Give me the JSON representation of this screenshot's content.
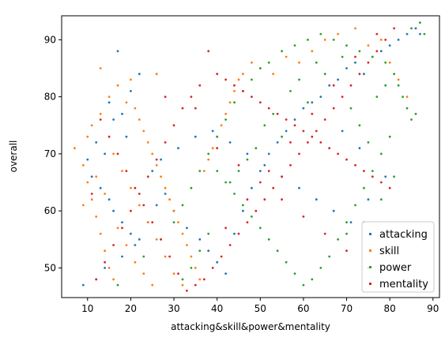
{
  "chart_data": {
    "type": "scatter",
    "xlabel": "attacking&skill&power&mentality",
    "ylabel": "overall",
    "xlim": [
      4,
      91.5
    ],
    "ylim": [
      44.8,
      94.2
    ],
    "xticks": [
      10,
      20,
      30,
      40,
      50,
      60,
      70,
      80,
      90
    ],
    "yticks": [
      50,
      60,
      70,
      80,
      90
    ],
    "legend_position": "lower-right",
    "grid": false,
    "series": [
      {
        "name": "attacking",
        "color": "#1f77b4",
        "points": [
          [
            17,
            88
          ],
          [
            22,
            84
          ],
          [
            20,
            81
          ],
          [
            15,
            79
          ],
          [
            16,
            76
          ],
          [
            18,
            77
          ],
          [
            12,
            72
          ],
          [
            14,
            70
          ],
          [
            19,
            73
          ],
          [
            10,
            69
          ],
          [
            11,
            66
          ],
          [
            13,
            64
          ],
          [
            15,
            62
          ],
          [
            16,
            60
          ],
          [
            18,
            58
          ],
          [
            20,
            56
          ],
          [
            22,
            55
          ],
          [
            24,
            58
          ],
          [
            26,
            61
          ],
          [
            28,
            63
          ],
          [
            30,
            60
          ],
          [
            33,
            57
          ],
          [
            36,
            55
          ],
          [
            38,
            53
          ],
          [
            40,
            51
          ],
          [
            42,
            49
          ],
          [
            44,
            56
          ],
          [
            46,
            60
          ],
          [
            48,
            64
          ],
          [
            50,
            67
          ],
          [
            52,
            70
          ],
          [
            54,
            72
          ],
          [
            56,
            74
          ],
          [
            58,
            76
          ],
          [
            60,
            78
          ],
          [
            62,
            79
          ],
          [
            64,
            80
          ],
          [
            66,
            82
          ],
          [
            68,
            83
          ],
          [
            70,
            85
          ],
          [
            72,
            86
          ],
          [
            74,
            84
          ],
          [
            76,
            87
          ],
          [
            78,
            88
          ],
          [
            80,
            89
          ],
          [
            82,
            90
          ],
          [
            84,
            91
          ],
          [
            86,
            92
          ],
          [
            87,
            91
          ],
          [
            9,
            47
          ],
          [
            12,
            48
          ],
          [
            14,
            50
          ],
          [
            18,
            52
          ],
          [
            21,
            54
          ],
          [
            25,
            67
          ],
          [
            27,
            69
          ],
          [
            31,
            71
          ],
          [
            35,
            73
          ],
          [
            39,
            74
          ],
          [
            43,
            72
          ],
          [
            47,
            70
          ],
          [
            51,
            68
          ],
          [
            55,
            66
          ],
          [
            59,
            64
          ],
          [
            63,
            62
          ],
          [
            67,
            60
          ],
          [
            71,
            58
          ],
          [
            75,
            62
          ],
          [
            79,
            66
          ],
          [
            73,
            71
          ],
          [
            69,
            74
          ]
        ]
      },
      {
        "name": "skill",
        "color": "#ff7f0e",
        "points": [
          [
            7,
            71
          ],
          [
            9,
            68
          ],
          [
            10,
            65
          ],
          [
            11,
            62
          ],
          [
            12,
            59
          ],
          [
            13,
            56
          ],
          [
            14,
            53
          ],
          [
            15,
            50
          ],
          [
            16,
            48
          ],
          [
            10,
            73
          ],
          [
            11,
            75
          ],
          [
            13,
            77
          ],
          [
            15,
            80
          ],
          [
            17,
            82
          ],
          [
            19,
            79
          ],
          [
            20,
            83
          ],
          [
            21,
            78
          ],
          [
            22,
            76
          ],
          [
            23,
            74
          ],
          [
            24,
            72
          ],
          [
            25,
            70
          ],
          [
            26,
            68
          ],
          [
            27,
            66
          ],
          [
            28,
            64
          ],
          [
            29,
            62
          ],
          [
            30,
            60
          ],
          [
            31,
            58
          ],
          [
            32,
            56
          ],
          [
            33,
            54
          ],
          [
            34,
            52
          ],
          [
            35,
            50
          ],
          [
            36,
            48
          ],
          [
            37,
            67
          ],
          [
            38,
            69
          ],
          [
            39,
            71
          ],
          [
            40,
            73
          ],
          [
            41,
            75
          ],
          [
            42,
            77
          ],
          [
            43,
            79
          ],
          [
            44,
            81
          ],
          [
            45,
            83
          ],
          [
            46,
            84
          ],
          [
            48,
            86
          ],
          [
            50,
            85
          ],
          [
            53,
            84
          ],
          [
            56,
            87
          ],
          [
            59,
            86
          ],
          [
            62,
            88
          ],
          [
            65,
            90
          ],
          [
            68,
            91
          ],
          [
            72,
            92
          ],
          [
            75,
            89
          ],
          [
            78,
            90
          ],
          [
            80,
            86
          ],
          [
            82,
            83
          ],
          [
            84,
            80
          ],
          [
            13,
            85
          ],
          [
            26,
            84
          ],
          [
            9,
            61
          ],
          [
            12,
            66
          ],
          [
            14,
            63
          ],
          [
            16,
            70
          ],
          [
            18,
            67
          ],
          [
            20,
            64
          ],
          [
            22,
            61
          ],
          [
            24,
            58
          ],
          [
            26,
            55
          ],
          [
            28,
            52
          ],
          [
            30,
            49
          ],
          [
            32,
            47
          ],
          [
            17,
            57
          ],
          [
            19,
            54
          ],
          [
            21,
            51
          ],
          [
            23,
            49
          ],
          [
            25,
            47
          ]
        ]
      },
      {
        "name": "power",
        "color": "#2ca02c",
        "points": [
          [
            17,
            47
          ],
          [
            23,
            52
          ],
          [
            27,
            55
          ],
          [
            30,
            58
          ],
          [
            32,
            61
          ],
          [
            34,
            64
          ],
          [
            36,
            67
          ],
          [
            38,
            70
          ],
          [
            40,
            73
          ],
          [
            42,
            76
          ],
          [
            44,
            79
          ],
          [
            46,
            81
          ],
          [
            48,
            83
          ],
          [
            50,
            85
          ],
          [
            52,
            86
          ],
          [
            55,
            88
          ],
          [
            58,
            89
          ],
          [
            61,
            90
          ],
          [
            64,
            91
          ],
          [
            67,
            90
          ],
          [
            70,
            89
          ],
          [
            73,
            88
          ],
          [
            76,
            87
          ],
          [
            79,
            86
          ],
          [
            81,
            84
          ],
          [
            82,
            82
          ],
          [
            83,
            80
          ],
          [
            84,
            78
          ],
          [
            85,
            76
          ],
          [
            86,
            77
          ],
          [
            80,
            73
          ],
          [
            78,
            70
          ],
          [
            76,
            67
          ],
          [
            74,
            64
          ],
          [
            72,
            61
          ],
          [
            70,
            58
          ],
          [
            68,
            55
          ],
          [
            66,
            52
          ],
          [
            64,
            50
          ],
          [
            62,
            48
          ],
          [
            60,
            47
          ],
          [
            58,
            49
          ],
          [
            56,
            51
          ],
          [
            54,
            53
          ],
          [
            52,
            55
          ],
          [
            50,
            57
          ],
          [
            48,
            59
          ],
          [
            46,
            61
          ],
          [
            44,
            63
          ],
          [
            42,
            65
          ],
          [
            40,
            67
          ],
          [
            38,
            56
          ],
          [
            36,
            53
          ],
          [
            34,
            50
          ],
          [
            32,
            48
          ],
          [
            75,
            72
          ],
          [
            73,
            75
          ],
          [
            71,
            78
          ],
          [
            77,
            80
          ],
          [
            79,
            82
          ],
          [
            65,
            84
          ],
          [
            63,
            86
          ],
          [
            69,
            87
          ],
          [
            59,
            83
          ],
          [
            57,
            81
          ],
          [
            61,
            79
          ],
          [
            53,
            77
          ],
          [
            51,
            75
          ],
          [
            55,
            73
          ],
          [
            49,
            71
          ],
          [
            47,
            69
          ],
          [
            45,
            67
          ],
          [
            43,
            65
          ],
          [
            85,
            92
          ],
          [
            87,
            93
          ],
          [
            88,
            91
          ],
          [
            70,
            56
          ],
          [
            74,
            58
          ],
          [
            78,
            62
          ],
          [
            81,
            66
          ]
        ]
      },
      {
        "name": "mentality",
        "color": "#d62728",
        "points": [
          [
            12,
            48
          ],
          [
            14,
            51
          ],
          [
            16,
            54
          ],
          [
            18,
            57
          ],
          [
            20,
            60
          ],
          [
            22,
            63
          ],
          [
            24,
            66
          ],
          [
            26,
            69
          ],
          [
            28,
            72
          ],
          [
            30,
            75
          ],
          [
            32,
            78
          ],
          [
            34,
            80
          ],
          [
            36,
            82
          ],
          [
            38,
            88
          ],
          [
            40,
            84
          ],
          [
            42,
            83
          ],
          [
            44,
            82
          ],
          [
            46,
            81
          ],
          [
            48,
            80
          ],
          [
            50,
            79
          ],
          [
            52,
            78
          ],
          [
            54,
            77
          ],
          [
            56,
            76
          ],
          [
            58,
            75
          ],
          [
            60,
            74
          ],
          [
            62,
            73
          ],
          [
            64,
            72
          ],
          [
            66,
            71
          ],
          [
            68,
            70
          ],
          [
            70,
            69
          ],
          [
            72,
            68
          ],
          [
            74,
            67
          ],
          [
            76,
            66
          ],
          [
            78,
            65
          ],
          [
            80,
            64
          ],
          [
            81,
            92
          ],
          [
            79,
            90
          ],
          [
            77,
            88
          ],
          [
            75,
            86
          ],
          [
            73,
            84
          ],
          [
            71,
            82
          ],
          [
            69,
            80
          ],
          [
            67,
            78
          ],
          [
            65,
            76
          ],
          [
            63,
            74
          ],
          [
            61,
            72
          ],
          [
            59,
            70
          ],
          [
            57,
            68
          ],
          [
            55,
            66
          ],
          [
            53,
            64
          ],
          [
            51,
            62
          ],
          [
            49,
            60
          ],
          [
            47,
            58
          ],
          [
            45,
            56
          ],
          [
            43,
            54
          ],
          [
            41,
            52
          ],
          [
            39,
            50
          ],
          [
            37,
            48
          ],
          [
            35,
            47
          ],
          [
            33,
            46
          ],
          [
            31,
            49
          ],
          [
            29,
            52
          ],
          [
            27,
            55
          ],
          [
            25,
            58
          ],
          [
            23,
            61
          ],
          [
            21,
            64
          ],
          [
            19,
            67
          ],
          [
            17,
            70
          ],
          [
            15,
            73
          ],
          [
            13,
            76
          ],
          [
            11,
            63
          ],
          [
            28,
            80
          ],
          [
            35,
            78
          ],
          [
            40,
            71
          ],
          [
            45,
            68
          ],
          [
            50,
            65
          ],
          [
            55,
            62
          ],
          [
            60,
            59
          ],
          [
            65,
            56
          ],
          [
            70,
            53
          ],
          [
            75,
            50
          ],
          [
            42,
            57
          ],
          [
            47,
            62
          ],
          [
            52,
            67
          ],
          [
            57,
            72
          ],
          [
            62,
            77
          ],
          [
            67,
            82
          ],
          [
            72,
            87
          ],
          [
            77,
            91
          ]
        ]
      }
    ]
  }
}
